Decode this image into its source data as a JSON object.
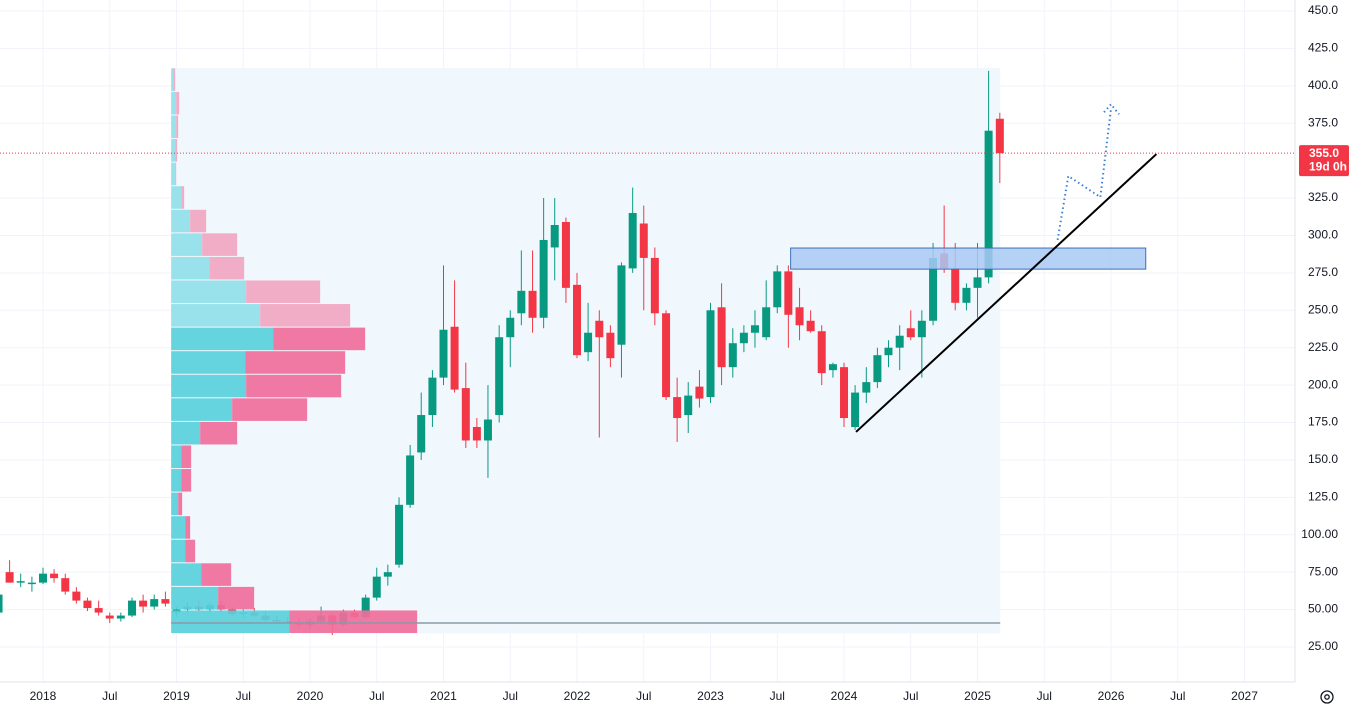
{
  "chart_data": {
    "type": "candlestick",
    "x": [
      2017.667,
      2017.75,
      2017.833,
      2017.917,
      2018.0,
      2018.083,
      2018.167,
      2018.25,
      2018.333,
      2018.417,
      2018.5,
      2018.583,
      2018.667,
      2018.75,
      2018.833,
      2018.917,
      2019.0,
      2019.083,
      2019.167,
      2019.25,
      2019.333,
      2019.417,
      2019.5,
      2019.583,
      2019.667,
      2019.75,
      2019.833,
      2019.917,
      2020.0,
      2020.083,
      2020.167,
      2020.25,
      2020.333,
      2020.417,
      2020.5,
      2020.583,
      2020.667,
      2020.75,
      2020.833,
      2020.917,
      2021.0,
      2021.083,
      2021.167,
      2021.25,
      2021.333,
      2021.417,
      2021.5,
      2021.583,
      2021.667,
      2021.75,
      2021.833,
      2021.917,
      2022.0,
      2022.083,
      2022.167,
      2022.25,
      2022.333,
      2022.417,
      2022.5,
      2022.583,
      2022.667,
      2022.75,
      2022.833,
      2022.917,
      2023.0,
      2023.083,
      2023.167,
      2023.25,
      2023.333,
      2023.417,
      2023.5,
      2023.583,
      2023.667,
      2023.75,
      2023.833,
      2023.917,
      2024.0,
      2024.083,
      2024.167,
      2024.25,
      2024.333,
      2024.417,
      2024.5,
      2024.583,
      2024.667,
      2024.75,
      2024.833,
      2024.917,
      2025.0,
      2025.083,
      2025.167
    ],
    "open": [
      48,
      75,
      68,
      67,
      68,
      74,
      71,
      62,
      56,
      51,
      46,
      44,
      46,
      56,
      52,
      57,
      48,
      50,
      52,
      50,
      53,
      50,
      47,
      48,
      46,
      43,
      42,
      41,
      40,
      42,
      46,
      40,
      48,
      45,
      58,
      72,
      80,
      120,
      155,
      180,
      205,
      239,
      198,
      172,
      163,
      180,
      232,
      248,
      263,
      245,
      292,
      309,
      267,
      222,
      243,
      235,
      227,
      278,
      308,
      285,
      248,
      192,
      180,
      199,
      192,
      252,
      212,
      228,
      235,
      232,
      252,
      276,
      252,
      243,
      236,
      210,
      212,
      172,
      195,
      202,
      220,
      225,
      238,
      232,
      243,
      288,
      278,
      255,
      265,
      272,
      378
    ],
    "high": [
      62,
      83,
      74,
      72,
      78,
      77,
      74,
      65,
      58,
      56,
      48,
      48,
      58,
      60,
      60,
      62,
      52,
      55,
      56,
      55,
      56,
      52,
      50,
      51,
      49,
      46,
      45,
      44,
      44,
      52,
      48,
      50,
      50,
      60,
      78,
      80,
      125,
      160,
      195,
      210,
      280,
      270,
      215,
      178,
      200,
      240,
      250,
      290,
      290,
      325,
      325,
      312,
      275,
      255,
      250,
      240,
      282,
      332,
      320,
      292,
      250,
      205,
      202,
      210,
      255,
      268,
      238,
      240,
      250,
      270,
      280,
      280,
      265,
      250,
      240,
      215,
      215,
      200,
      212,
      225,
      230,
      240,
      250,
      250,
      295,
      320,
      295,
      268,
      295,
      410,
      382
    ],
    "low": [
      46,
      68,
      65,
      62,
      67,
      68,
      60,
      54,
      49,
      46,
      41,
      42,
      45,
      48,
      50,
      52,
      45,
      48,
      49,
      48,
      48,
      46,
      44,
      45,
      42,
      40,
      40,
      38,
      37,
      40,
      33,
      39,
      44,
      44,
      56,
      66,
      78,
      118,
      150,
      172,
      200,
      195,
      158,
      158,
      138,
      175,
      212,
      240,
      235,
      238,
      270,
      255,
      218,
      216,
      165,
      212,
      205,
      275,
      250,
      240,
      190,
      162,
      168,
      185,
      188,
      200,
      205,
      222,
      225,
      230,
      248,
      225,
      230,
      235,
      200,
      205,
      172,
      170,
      188,
      198,
      212,
      210,
      230,
      205,
      240,
      275,
      250,
      250,
      245,
      268,
      335
    ],
    "close": [
      60,
      68,
      69,
      68,
      74,
      71,
      62,
      56,
      51,
      48,
      44,
      46,
      56,
      52,
      57,
      54,
      50,
      52,
      50,
      53,
      50,
      47,
      48,
      46,
      43,
      42,
      41,
      40,
      42,
      46,
      40,
      48,
      45,
      58,
      72,
      75,
      120,
      153,
      180,
      205,
      237,
      197,
      163,
      163,
      177,
      232,
      245,
      263,
      245,
      297,
      307,
      265,
      220,
      235,
      232,
      218,
      280,
      315,
      285,
      248,
      192,
      178,
      193,
      191,
      250,
      212,
      228,
      235,
      240,
      252,
      276,
      247,
      240,
      236,
      208,
      214,
      178,
      195,
      202,
      220,
      225,
      233,
      232,
      243,
      285,
      278,
      255,
      265,
      272,
      370,
      355
    ],
    "up_color": "#089981",
    "down_color": "#f23645",
    "xlim": [
      2017.678,
      2027.378
    ],
    "ylim": [
      1.6,
      457.35
    ],
    "xticks": [
      2018,
      {
        "value": 2018.5,
        "label": "Jul"
      },
      2019,
      {
        "value": 2019.5,
        "label": "Jul"
      },
      2020,
      {
        "value": 2020.5,
        "label": "Jul"
      },
      2021,
      {
        "value": 2021.5,
        "label": "Jul"
      },
      2022,
      {
        "value": 2022.5,
        "label": "Jul"
      },
      2023,
      {
        "value": 2023.5,
        "label": "Jul"
      },
      2024,
      {
        "value": 2024.5,
        "label": "Jul"
      },
      2025,
      {
        "value": 2025.5,
        "label": "Jul"
      },
      2026,
      {
        "value": 2026.5,
        "label": "Jul"
      },
      2027
    ],
    "yticks": [
      {
        "value": 25,
        "label": "25.00"
      },
      {
        "value": 50,
        "label": "50.00"
      },
      {
        "value": 75,
        "label": "75.00"
      },
      {
        "value": 100,
        "label": "100.00"
      },
      {
        "value": 125,
        "label": "125.0"
      },
      {
        "value": 150,
        "label": "150.0"
      },
      {
        "value": 175,
        "label": "175.0"
      },
      {
        "value": 200,
        "label": "200.0"
      },
      {
        "value": 225,
        "label": "225.0"
      },
      {
        "value": 250,
        "label": "250.0"
      },
      {
        "value": 275,
        "label": "275.0"
      },
      {
        "value": 300,
        "label": "300.0"
      },
      {
        "value": 325,
        "label": "325.0"
      },
      {
        "value": 375,
        "label": "375.0"
      },
      {
        "value": 400,
        "label": "400.0"
      },
      {
        "value": 425,
        "label": "425.0"
      },
      {
        "value": 450,
        "label": "450.0"
      }
    ],
    "grid": true,
    "last_price": {
      "value": 355,
      "label": "355.0",
      "countdown": "19d 0h",
      "color": "#f23645"
    },
    "volume_profile": {
      "time_range": [
        2018.96,
        2025.17
      ],
      "bins": [
        34,
        49.75,
        65.5,
        81.25,
        97,
        112.75,
        128.5,
        144.25,
        160,
        175.75,
        191.5,
        207.25,
        223,
        238.75,
        254.5,
        270.25,
        286,
        301.75,
        317.5,
        333.25,
        349,
        364.75,
        380.5,
        396.25,
        412
      ],
      "up_volume": [
        118,
        47,
        30,
        14,
        14,
        7,
        10,
        10,
        29,
        61,
        75,
        74,
        102,
        89,
        75,
        38,
        31,
        19,
        10,
        4,
        4,
        5,
        5,
        2
      ],
      "down_volume": [
        128,
        36,
        30,
        10,
        5,
        4,
        10,
        10,
        37,
        75,
        95,
        100,
        92,
        90,
        74,
        35,
        35,
        16,
        3,
        1,
        2,
        2,
        3,
        2
      ],
      "value_area": [
        34,
        238.75
      ],
      "poc": 41,
      "colors": {
        "up": "#5ad0dc",
        "up_outside": "#91e0e9",
        "down": "#ef6e9b",
        "down_outside": "#f2a6c1",
        "background": "#f1f8fd",
        "poc": "#8a9aa6"
      }
    },
    "zone": {
      "x": [
        2023.6,
        2026.26
      ],
      "y": [
        277.5,
        291.6
      ],
      "color": "#a9c9f5"
    },
    "trend_line": {
      "x": [
        2024.09,
        2026.34
      ],
      "y": [
        168.7,
        354.4
      ],
      "color": "#000000"
    },
    "projection": {
      "x": [
        2025.6,
        2025.68,
        2025.92,
        2026.0
      ],
      "y": [
        297,
        339.7,
        325.6,
        385
      ],
      "color": "#3b7fd1"
    }
  }
}
